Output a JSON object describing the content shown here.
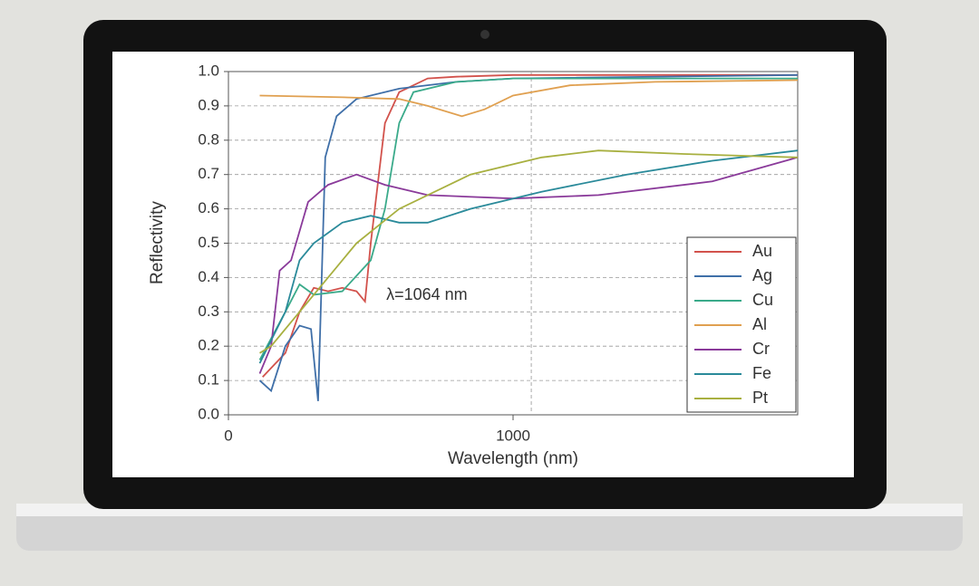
{
  "chart_data": {
    "type": "line",
    "xlabel": "Wavelength (nm)",
    "ylabel": "Reflectivity",
    "xlim": [
      0,
      2000
    ],
    "xticks": [
      0,
      1000
    ],
    "ylim": [
      0,
      1
    ],
    "yticks": [
      {
        "value": 0,
        "label": "0.0"
      },
      0.1,
      0.2,
      0.3,
      0.4,
      0.5,
      0.6,
      0.7,
      0.8,
      0.9,
      {
        "value": 1,
        "label": "1.0"
      }
    ],
    "grid": true,
    "legend": "lower right",
    "reference_line": {
      "x": 1064,
      "label": "λ=1064 nm"
    },
    "series": [
      {
        "name": "Au",
        "color": "#d2524c",
        "x": [
          120,
          200,
          250,
          300,
          350,
          400,
          450,
          480,
          500,
          550,
          600,
          700,
          800,
          1000,
          1500,
          2000
        ],
        "values": [
          0.11,
          0.18,
          0.3,
          0.37,
          0.36,
          0.37,
          0.36,
          0.33,
          0.5,
          0.85,
          0.94,
          0.98,
          0.985,
          0.99,
          0.99,
          0.99
        ]
      },
      {
        "name": "Ag",
        "color": "#3f6fa8",
        "x": [
          110,
          150,
          200,
          250,
          290,
          315,
          340,
          380,
          450,
          600,
          800,
          1000,
          2000
        ],
        "values": [
          0.1,
          0.07,
          0.2,
          0.26,
          0.25,
          0.04,
          0.75,
          0.87,
          0.92,
          0.95,
          0.97,
          0.98,
          0.99
        ]
      },
      {
        "name": "Cu",
        "color": "#3aaa8a",
        "x": [
          110,
          200,
          250,
          300,
          400,
          500,
          550,
          600,
          650,
          800,
          1000,
          2000
        ],
        "values": [
          0.16,
          0.3,
          0.38,
          0.35,
          0.36,
          0.45,
          0.6,
          0.85,
          0.94,
          0.97,
          0.98,
          0.98
        ]
      },
      {
        "name": "Al",
        "color": "#e0a050",
        "x": [
          110,
          400,
          600,
          700,
          820,
          900,
          1000,
          1200,
          1500,
          2000
        ],
        "values": [
          0.93,
          0.925,
          0.92,
          0.9,
          0.87,
          0.89,
          0.93,
          0.96,
          0.97,
          0.975
        ]
      },
      {
        "name": "Cr",
        "color": "#8a3a9a",
        "x": [
          110,
          150,
          180,
          220,
          280,
          350,
          450,
          550,
          700,
          1000,
          1300,
          1700,
          2000
        ],
        "values": [
          0.12,
          0.2,
          0.42,
          0.45,
          0.62,
          0.67,
          0.7,
          0.67,
          0.64,
          0.63,
          0.64,
          0.68,
          0.75
        ]
      },
      {
        "name": "Fe",
        "color": "#2a8a9a",
        "x": [
          110,
          200,
          250,
          300,
          400,
          500,
          600,
          700,
          850,
          1100,
          1400,
          1700,
          2000
        ],
        "values": [
          0.15,
          0.3,
          0.45,
          0.5,
          0.56,
          0.58,
          0.56,
          0.56,
          0.6,
          0.65,
          0.7,
          0.74,
          0.77
        ]
      },
      {
        "name": "Pt",
        "color": "#a8b040",
        "x": [
          110,
          150,
          250,
          350,
          450,
          600,
          850,
          1100,
          1300,
          1600,
          2000
        ],
        "values": [
          0.18,
          0.2,
          0.3,
          0.4,
          0.5,
          0.6,
          0.7,
          0.75,
          0.77,
          0.76,
          0.75
        ]
      }
    ]
  }
}
